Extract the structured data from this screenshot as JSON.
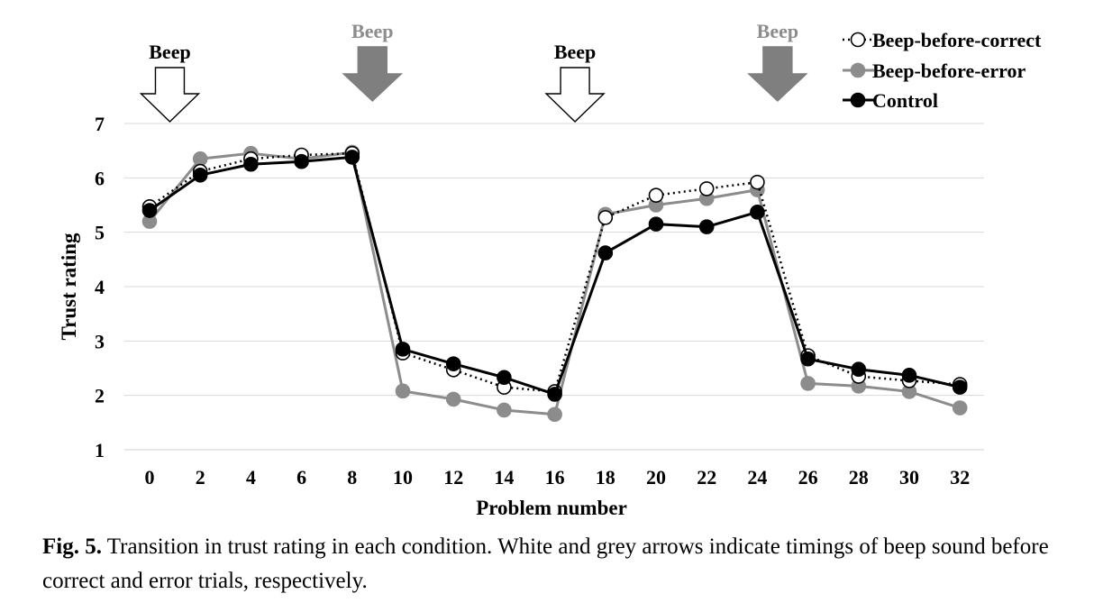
{
  "chart_data": {
    "type": "line",
    "x": [
      0,
      2,
      4,
      6,
      8,
      10,
      12,
      14,
      16,
      18,
      20,
      22,
      24,
      26,
      28,
      30,
      32
    ],
    "xlabel": "Problem number",
    "ylabel": "Trust rating",
    "ylim": [
      1,
      7
    ],
    "yticks": [
      1,
      2,
      3,
      4,
      5,
      6,
      7
    ],
    "xticks": [
      "0",
      "2",
      "4",
      "6",
      "8",
      "10",
      "12",
      "14",
      "16",
      "18",
      "20",
      "22",
      "24",
      "26",
      "28",
      "30",
      "32"
    ],
    "grid": "horizontal",
    "legend_position": "top-right",
    "series": [
      {
        "name": "Beep-before-correct",
        "line_color": "#000000",
        "line_style": "dotted",
        "marker_fill": "#ffffff",
        "marker_stroke": "#000000",
        "values": [
          5.47,
          6.12,
          6.35,
          6.42,
          6.45,
          2.78,
          2.47,
          2.15,
          2.07,
          5.27,
          5.68,
          5.8,
          5.92,
          2.73,
          2.35,
          2.27,
          2.2
        ]
      },
      {
        "name": "Beep-before-error",
        "line_color": "#8c8c8c",
        "line_style": "solid",
        "marker_fill": "#8c8c8c",
        "marker_stroke": "#8c8c8c",
        "values": [
          5.2,
          6.35,
          6.45,
          6.35,
          6.47,
          2.08,
          1.93,
          1.73,
          1.65,
          5.33,
          5.5,
          5.62,
          5.78,
          2.22,
          2.17,
          2.07,
          1.77
        ]
      },
      {
        "name": "Control",
        "line_color": "#000000",
        "line_style": "solid",
        "marker_fill": "#000000",
        "marker_stroke": "#000000",
        "values": [
          5.4,
          6.05,
          6.25,
          6.3,
          6.38,
          2.85,
          2.58,
          2.33,
          2.02,
          4.62,
          5.15,
          5.1,
          5.37,
          2.67,
          2.48,
          2.37,
          2.15
        ]
      }
    ],
    "annotations": [
      {
        "label": "Beep",
        "x": 0.8,
        "arrow": "white",
        "label_color": "#000000"
      },
      {
        "label": "Beep",
        "x": 8.8,
        "arrow": "grey",
        "label_color": "#8c8c8c"
      },
      {
        "label": "Beep",
        "x": 16.8,
        "arrow": "white",
        "label_color": "#000000"
      },
      {
        "label": "Beep",
        "x": 24.8,
        "arrow": "grey",
        "label_color": "#8c8c8c"
      }
    ]
  },
  "caption": {
    "label": "Fig. 5.",
    "text": " Transition in trust rating in each condition. White and grey arrows indicate timings of beep sound before correct and error trials, respectively."
  }
}
